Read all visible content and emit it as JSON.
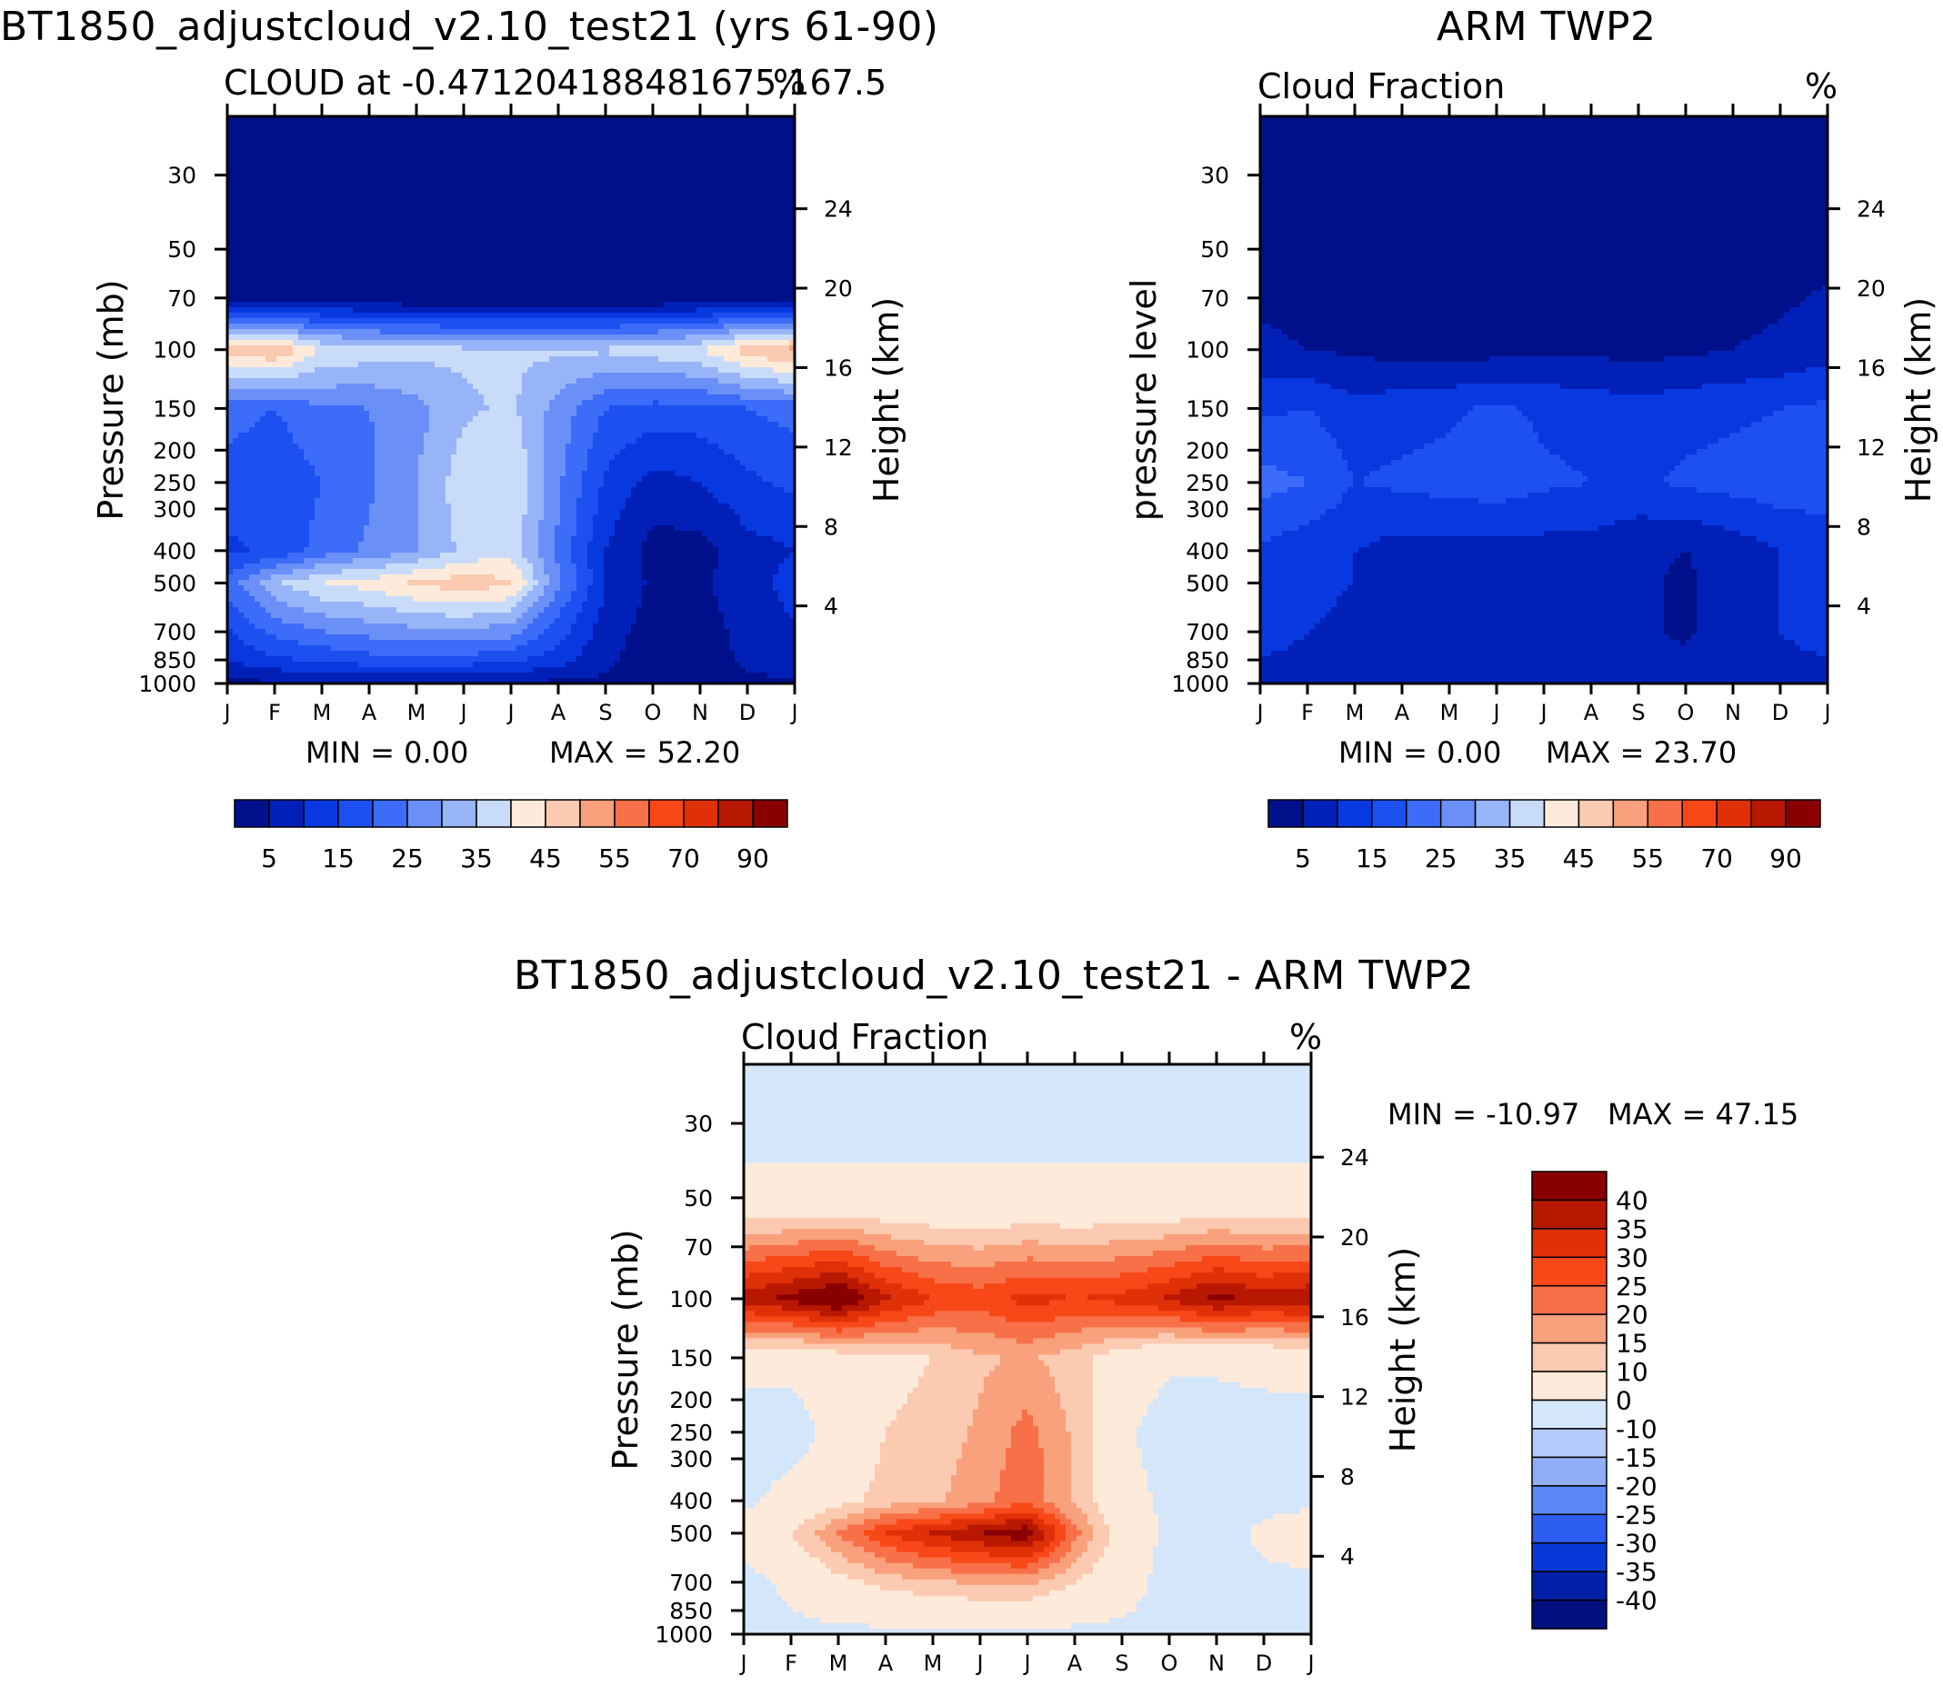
{
  "chart_data": [
    {
      "type": "heatmap",
      "title": "BT1850_adjustcloud_v2.10_test21 (yrs 61-90)",
      "subtitle": "CLOUD at -0.471204188481675,167.5",
      "units": "%",
      "ylabel": "Pressure (mb)",
      "ylabel_right": "Height (km)",
      "x_ticks": [
        "J",
        "F",
        "M",
        "A",
        "M",
        "J",
        "J",
        "A",
        "S",
        "O",
        "N",
        "D",
        "J"
      ],
      "y_ticks": [
        "30",
        "50",
        "70",
        "100",
        "150",
        "200",
        "250",
        "300",
        "400",
        "500",
        "700",
        "850",
        "1000"
      ],
      "y_ticks_right": [
        "24",
        "20",
        "16",
        "12",
        "8",
        "4"
      ],
      "min_text": "MIN =    0.00",
      "max_text": "MAX =   52.20",
      "min": 0.0,
      "max": 52.2,
      "colorbar_labels": [
        "5",
        "15",
        "25",
        "35",
        "45",
        "55",
        "70",
        "90"
      ],
      "colorbar_colors": [
        "#00108a",
        "#0020b8",
        "#0838e0",
        "#1c50f0",
        "#3c6cf8",
        "#6a90f8",
        "#98b4f8",
        "#c8dcfa",
        "#fdeadb",
        "#fbcab0",
        "#f9a07c",
        "#f87048",
        "#f84818",
        "#e03008",
        "#b81800",
        "#8a0000"
      ],
      "levels": [
        {
          "p": "30",
          "values": [
            0,
            0,
            0,
            0,
            0,
            0,
            0,
            0,
            0,
            0,
            0,
            0,
            0
          ]
        },
        {
          "p": "70",
          "values": [
            4,
            3,
            2,
            1,
            0,
            0,
            0,
            0,
            0,
            0,
            1,
            2,
            3
          ]
        },
        {
          "p": "100",
          "values": [
            48,
            50,
            40,
            38,
            37,
            36,
            36,
            36,
            36,
            38,
            40,
            48,
            52
          ]
        },
        {
          "p": "150",
          "values": [
            22,
            20,
            24,
            25,
            28,
            34,
            36,
            28,
            20,
            18,
            18,
            20,
            22
          ]
        },
        {
          "p": "250",
          "values": [
            18,
            16,
            20,
            24,
            30,
            38,
            40,
            26,
            14,
            8,
            10,
            14,
            16
          ]
        },
        {
          "p": "400",
          "values": [
            14,
            16,
            22,
            26,
            30,
            36,
            38,
            24,
            10,
            3,
            3,
            8,
            10
          ]
        },
        {
          "p": "500",
          "values": [
            22,
            34,
            40,
            42,
            46,
            48,
            46,
            26,
            10,
            4,
            4,
            8,
            12
          ]
        },
        {
          "p": "850",
          "values": [
            10,
            14,
            16,
            18,
            18,
            18,
            16,
            12,
            6,
            2,
            2,
            6,
            8
          ]
        },
        {
          "p": "1000",
          "values": [
            4,
            4,
            4,
            4,
            4,
            4,
            4,
            4,
            4,
            4,
            4,
            4,
            4
          ]
        }
      ]
    },
    {
      "type": "heatmap",
      "title": "ARM TWP2",
      "subtitle": "Cloud Fraction",
      "units": "%",
      "ylabel": "pressure level",
      "ylabel_right": "Height (km)",
      "x_ticks": [
        "J",
        "F",
        "M",
        "A",
        "M",
        "J",
        "J",
        "A",
        "S",
        "O",
        "N",
        "D",
        "J"
      ],
      "y_ticks": [
        "30",
        "50",
        "70",
        "100",
        "150",
        "200",
        "250",
        "300",
        "400",
        "500",
        "700",
        "850",
        "1000"
      ],
      "y_ticks_right": [
        "24",
        "20",
        "16",
        "12",
        "8",
        "4"
      ],
      "min_text": "MIN =    0.00",
      "max_text": "MAX =   23.70",
      "min": 0.0,
      "max": 23.7,
      "colorbar_labels": [
        "5",
        "15",
        "25",
        "35",
        "45",
        "55",
        "70",
        "90"
      ],
      "colorbar_colors": [
        "#00108a",
        "#0020b8",
        "#0838e0",
        "#1c50f0",
        "#3c6cf8",
        "#6a90f8",
        "#98b4f8",
        "#c8dcfa",
        "#fdeadb",
        "#fbcab0",
        "#f9a07c",
        "#f87048",
        "#f84818",
        "#e03008",
        "#b81800",
        "#8a0000"
      ],
      "levels": [
        {
          "p": "30",
          "values": [
            0,
            0,
            0,
            0,
            0,
            0,
            0,
            0,
            0,
            0,
            0,
            0,
            0
          ]
        },
        {
          "p": "100",
          "values": [
            6,
            5,
            4,
            3,
            3,
            3,
            4,
            4,
            3,
            4,
            5,
            6,
            8
          ]
        },
        {
          "p": "150",
          "values": [
            14,
            15,
            12,
            13,
            14,
            16,
            14,
            13,
            12,
            13,
            14,
            15,
            16
          ]
        },
        {
          "p": "250",
          "values": [
            22,
            20,
            15,
            16,
            17,
            18,
            16,
            15,
            14,
            16,
            17,
            18,
            18
          ]
        },
        {
          "p": "400",
          "values": [
            14,
            12,
            10,
            8,
            8,
            8,
            8,
            8,
            6,
            5,
            7,
            10,
            12
          ]
        },
        {
          "p": "500",
          "values": [
            12,
            12,
            10,
            8,
            8,
            8,
            8,
            8,
            6,
            4,
            8,
            10,
            12
          ]
        },
        {
          "p": "700",
          "values": [
            12,
            10,
            8,
            6,
            5,
            8,
            6,
            8,
            6,
            4,
            8,
            10,
            12
          ]
        },
        {
          "p": "1000",
          "values": [
            8,
            8,
            8,
            8,
            8,
            8,
            8,
            8,
            8,
            8,
            8,
            8,
            8
          ]
        }
      ]
    },
    {
      "type": "heatmap",
      "title": "BT1850_adjustcloud_v2.10_test21 - ARM TWP2",
      "subtitle": "Cloud Fraction",
      "units": "%",
      "ylabel": "Pressure (mb)",
      "ylabel_right": "Height (km)",
      "x_ticks": [
        "J",
        "F",
        "M",
        "A",
        "M",
        "J",
        "J",
        "A",
        "S",
        "O",
        "N",
        "D",
        "J"
      ],
      "y_ticks": [
        "30",
        "50",
        "70",
        "100",
        "150",
        "200",
        "250",
        "300",
        "400",
        "500",
        "700",
        "850",
        "1000"
      ],
      "y_ticks_right": [
        "24",
        "20",
        "16",
        "12",
        "8",
        "4"
      ],
      "min_text": "MIN = -10.97",
      "max_text": "MAX =   47.15",
      "min": -10.97,
      "max": 47.15,
      "colorbar_labels": [
        "40",
        "35",
        "30",
        "25",
        "20",
        "15",
        "10",
        "0",
        "-10",
        "-15",
        "-20",
        "-25",
        "-30",
        "-35",
        "-40"
      ],
      "colorbar_colors": [
        "#8a0000",
        "#b81800",
        "#e03008",
        "#f84818",
        "#f87048",
        "#f9a07c",
        "#fbcab0",
        "#fdeadb",
        "#d4e6fa",
        "#b4cafa",
        "#90aef8",
        "#5a86f8",
        "#2c5cf0",
        "#0838d8",
        "#0020a8",
        "#001080"
      ],
      "levels": [
        {
          "p": "30",
          "values": [
            -2,
            -2,
            -2,
            -2,
            -2,
            -2,
            -2,
            -2,
            -2,
            -2,
            -2,
            -2,
            -2
          ]
        },
        {
          "p": "50",
          "values": [
            2,
            2,
            2,
            2,
            2,
            2,
            2,
            2,
            2,
            2,
            2,
            2,
            2
          ]
        },
        {
          "p": "100",
          "values": [
            38,
            42,
            47,
            36,
            30,
            28,
            32,
            30,
            32,
            36,
            42,
            38,
            40
          ]
        },
        {
          "p": "150",
          "values": [
            4,
            3,
            6,
            8,
            10,
            14,
            16,
            12,
            6,
            2,
            2,
            3,
            4
          ]
        },
        {
          "p": "250",
          "values": [
            -6,
            -5,
            4,
            10,
            12,
            16,
            22,
            14,
            2,
            -5,
            -5,
            -4,
            -4
          ]
        },
        {
          "p": "400",
          "values": [
            -2,
            4,
            8,
            12,
            14,
            18,
            24,
            14,
            4,
            -2,
            -4,
            -3,
            -2
          ]
        },
        {
          "p": "500",
          "values": [
            4,
            10,
            20,
            30,
            36,
            40,
            44,
            22,
            6,
            -2,
            -4,
            2,
            6
          ]
        },
        {
          "p": "700",
          "values": [
            -3,
            2,
            8,
            12,
            14,
            16,
            16,
            10,
            4,
            -3,
            -3,
            -2,
            -2
          ]
        },
        {
          "p": "1000",
          "values": [
            -2,
            -2,
            -2,
            -2,
            -2,
            -2,
            -2,
            -2,
            -2,
            -2,
            -2,
            -2,
            -2
          ]
        }
      ]
    }
  ]
}
